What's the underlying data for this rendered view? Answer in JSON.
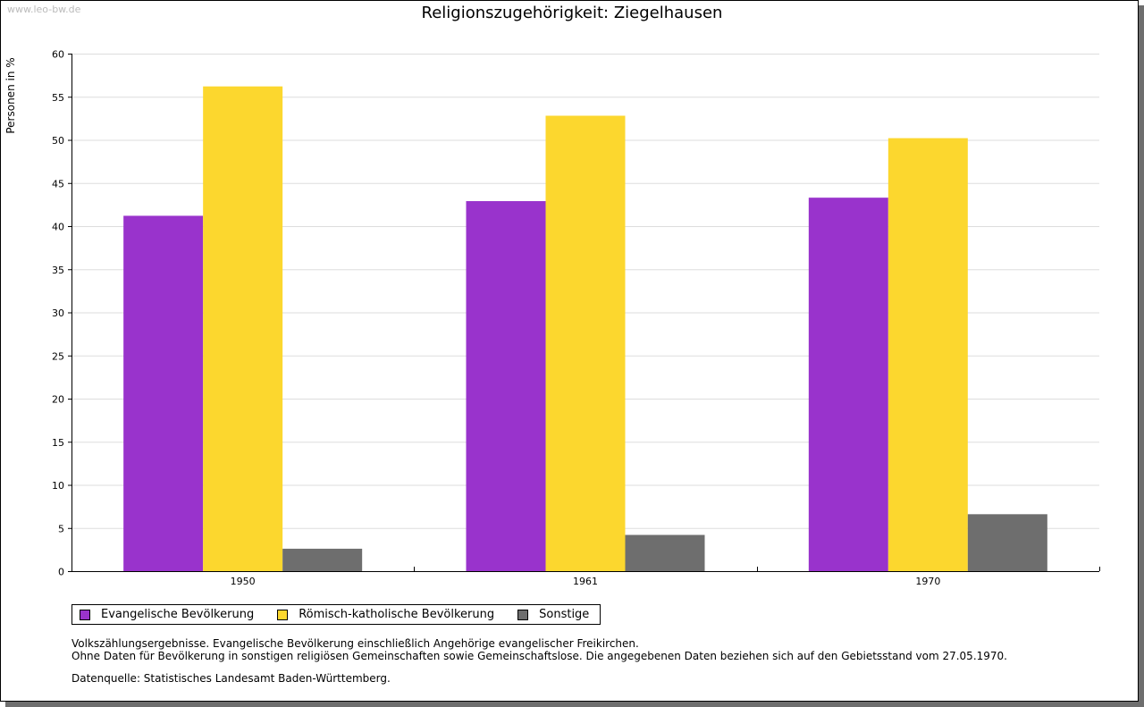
{
  "watermark": "www.leo-bw.de",
  "chart_data": {
    "type": "bar",
    "title": "Religionszugehörigkeit: Ziegelhausen",
    "ylabel": "Personen in %",
    "xlabel": "",
    "ylim": [
      0,
      60
    ],
    "yticks": [
      0,
      5,
      10,
      15,
      20,
      25,
      30,
      35,
      40,
      45,
      50,
      55,
      60
    ],
    "grid": true,
    "categories": [
      "1950",
      "1961",
      "1970"
    ],
    "series": [
      {
        "name": "Evangelische Bevölkerung",
        "color": "#9933cc",
        "values": [
          41.2,
          42.9,
          43.3
        ]
      },
      {
        "name": "Römisch-katholische Bevölkerung",
        "color": "#fcd72e",
        "values": [
          56.2,
          52.8,
          50.2
        ]
      },
      {
        "name": "Sonstige",
        "color": "#6e6e6e",
        "values": [
          2.6,
          4.2,
          6.6
        ]
      }
    ],
    "legend_position": "bottom-left"
  },
  "notes": [
    "Volkszählungsergebnisse. Evangelische Bevölkerung einschließlich Angehörige evangelischer Freikirchen.",
    "Ohne Daten für Bevölkerung in sonstigen religiösen Gemeinschaften sowie Gemeinschaftslose. Die angegebenen Daten beziehen sich auf den Gebietsstand vom 27.05.1970."
  ],
  "source": "Datenquelle: Statistisches Landesamt Baden-Württemberg."
}
